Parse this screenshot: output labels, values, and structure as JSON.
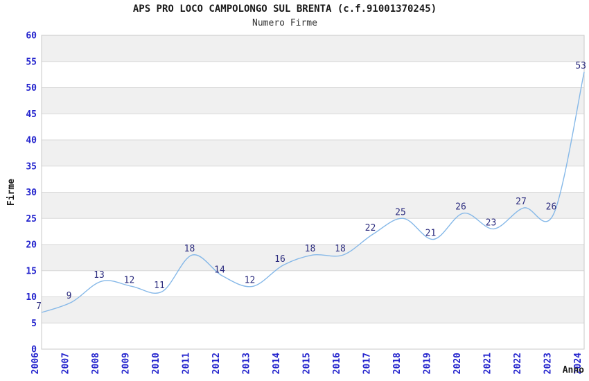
{
  "title": "APS PRO LOCO CAMPOLONGO SUL BRENTA (c.f.91001370245)",
  "subtitle": "Numero Firme",
  "chart_data": {
    "type": "line",
    "x": [
      2006,
      2007,
      2008,
      2009,
      2010,
      2011,
      2012,
      2013,
      2014,
      2015,
      2016,
      2017,
      2018,
      2019,
      2020,
      2021,
      2022,
      2023,
      2024
    ],
    "series": [
      {
        "name": "Numero Firme",
        "values": [
          7,
          9,
          13,
          12,
          11,
          18,
          14,
          12,
          16,
          18,
          18,
          22,
          25,
          21,
          26,
          23,
          27,
          26,
          53
        ]
      }
    ],
    "title": "APS PRO LOCO CAMPOLONGO SUL BRENTA (c.f.91001370245)",
    "subtitle": "Numero Firme",
    "xlabel": "Anno",
    "ylabel": "Firme",
    "ylim": [
      0,
      60
    ],
    "ytick_step": 5,
    "grid": true,
    "bands": "alternating horizontal gray/white stripes every 5 units, gray on 55-60",
    "legend_position": "none",
    "point_labels_shown": true,
    "colors": {
      "line": "#85b8e8",
      "point_label": "#2b2b7e",
      "tick_label": "#2323cd",
      "band": "#f0f0f0",
      "grid": "#d8d8d8",
      "frame": "#c8c8c8",
      "title": "#1a1a1a",
      "subtitle": "#333333",
      "axis_label": "#1a1a1a",
      "background": "#ffffff"
    }
  }
}
